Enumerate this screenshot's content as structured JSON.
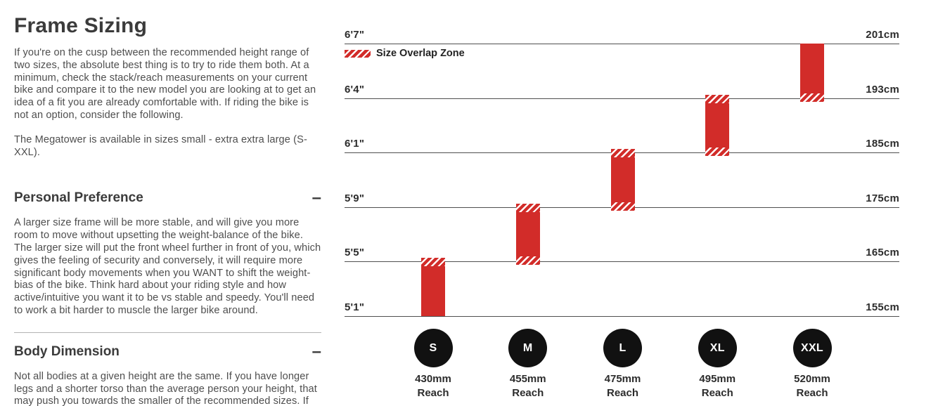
{
  "left_column": {
    "title": "Frame Sizing",
    "intro_paragraphs": [
      "If you're on the cusp between the recommended height range of two sizes, the absolute best thing is to try to ride them both. At a minimum, check the stack/reach measurements on your current bike and compare it to the new model you are looking at to get an idea of a fit you are already comfortable with. If riding the bike is not an option, consider the following.",
      "The Megatower is available in sizes small - extra extra large (S-XXL)."
    ],
    "sections": [
      {
        "heading": "Personal Preference",
        "toggle": "–",
        "body": "A larger size frame will be more stable, and will give you more room to move without upsetting the weight-balance of the bike. The larger size will put the front wheel further in front of you, which gives the feeling of security and conversely, it will require more significant body movements when you WANT to shift the weight-bias of the bike. Think hard about your riding style and how active/intuitive you want it to be vs stable and speedy. You'll need to work a bit harder to muscle the larger bike around."
      },
      {
        "heading": "Body Dimension",
        "toggle": "–",
        "body": "Not all bodies at a given height are the same. If you have longer legs and a shorter torso than the average person your height, that may push you towards the smaller of the recommended sizes. If you're all torso and arms, most likely you'll want to size up."
      }
    ]
  },
  "chart_data": {
    "type": "bar",
    "description": "Rider height ranges per frame size; hatched bar ends mark size overlap zones",
    "legend": [
      {
        "label": "Size Overlap Zone",
        "style": "red-hatch"
      }
    ],
    "bar_color": "#d22c29",
    "y_axis": {
      "left_ticks": [
        "6'7\"",
        "6'4\"",
        "6'1\"",
        "5'9\"",
        "5'5\"",
        "5'1\""
      ],
      "right_ticks": [
        "201cm",
        "193cm",
        "185cm",
        "175cm",
        "165cm",
        "155cm"
      ],
      "grid": true
    },
    "reach_caption": "Reach",
    "series": [
      {
        "size": "S",
        "reach": "430mm",
        "reach_mm": 430,
        "height_range_imperial": "5'1\"-5'5\"",
        "height_range_cm": [
          155,
          165
        ],
        "overlap_top": true,
        "overlap_bottom": false
      },
      {
        "size": "M",
        "reach": "455mm",
        "reach_mm": 455,
        "height_range_imperial": "5'5\"-5'9\"",
        "height_range_cm": [
          165,
          175
        ],
        "overlap_top": true,
        "overlap_bottom": true
      },
      {
        "size": "L",
        "reach": "475mm",
        "reach_mm": 475,
        "height_range_imperial": "5'9\"-6'1\"",
        "height_range_cm": [
          175,
          185
        ],
        "overlap_top": true,
        "overlap_bottom": true
      },
      {
        "size": "XL",
        "reach": "495mm",
        "reach_mm": 495,
        "height_range_imperial": "6'1\"-6'4\"",
        "height_range_cm": [
          185,
          193
        ],
        "overlap_top": true,
        "overlap_bottom": true
      },
      {
        "size": "XXL",
        "reach": "520mm",
        "reach_mm": 520,
        "height_range_imperial": "6'4\"-6'7\"",
        "height_range_cm": [
          193,
          201
        ],
        "overlap_top": false,
        "overlap_bottom": true
      }
    ]
  }
}
